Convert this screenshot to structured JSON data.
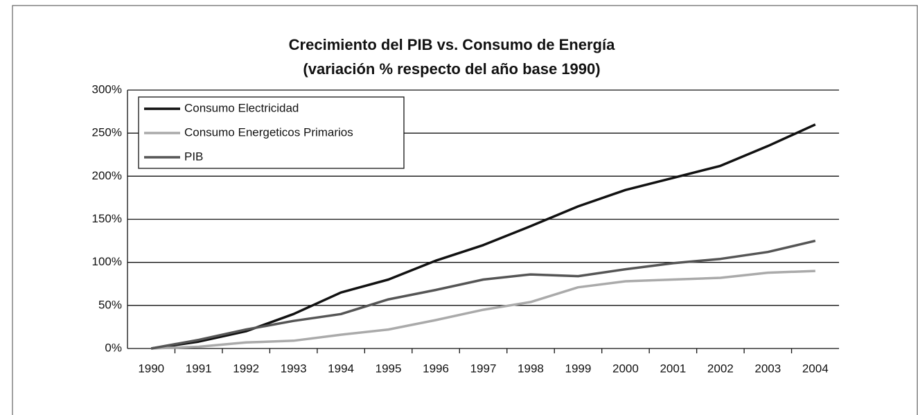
{
  "chart_data": {
    "type": "line",
    "title": "Crecimiento del PIB vs. Consumo de Energía",
    "subtitle": "(variación % respecto del año base 1990)",
    "categories": [
      "1990",
      "1991",
      "1992",
      "1993",
      "1994",
      "1995",
      "1996",
      "1997",
      "1998",
      "1999",
      "2000",
      "2001",
      "2002",
      "2003",
      "2004"
    ],
    "series": [
      {
        "name": "Consumo Electricidad",
        "color": "#111111",
        "values": [
          0,
          8,
          20,
          40,
          65,
          80,
          102,
          120,
          142,
          165,
          184,
          198,
          212,
          235,
          260
        ]
      },
      {
        "name": "Consumo Energeticos Primarios",
        "color": "#aaaaaa",
        "values": [
          0,
          2,
          7,
          9,
          16,
          22,
          33,
          45,
          54,
          71,
          78,
          80,
          82,
          88,
          90
        ]
      },
      {
        "name": "PIB",
        "color": "#555555",
        "values": [
          0,
          10,
          22,
          32,
          40,
          57,
          68,
          80,
          86,
          84,
          92,
          99,
          104,
          112,
          125
        ]
      }
    ],
    "ylim": [
      0,
      300
    ],
    "yticks": [
      {
        "value": 0,
        "label": "0%"
      },
      {
        "value": 50,
        "label": "50%"
      },
      {
        "value": 100,
        "label": "100%"
      },
      {
        "value": 150,
        "label": "150%"
      },
      {
        "value": 200,
        "label": "200%"
      },
      {
        "value": 250,
        "label": "250%"
      },
      {
        "value": 300,
        "label": "300%"
      }
    ],
    "grid": true,
    "legend": "upper left"
  }
}
